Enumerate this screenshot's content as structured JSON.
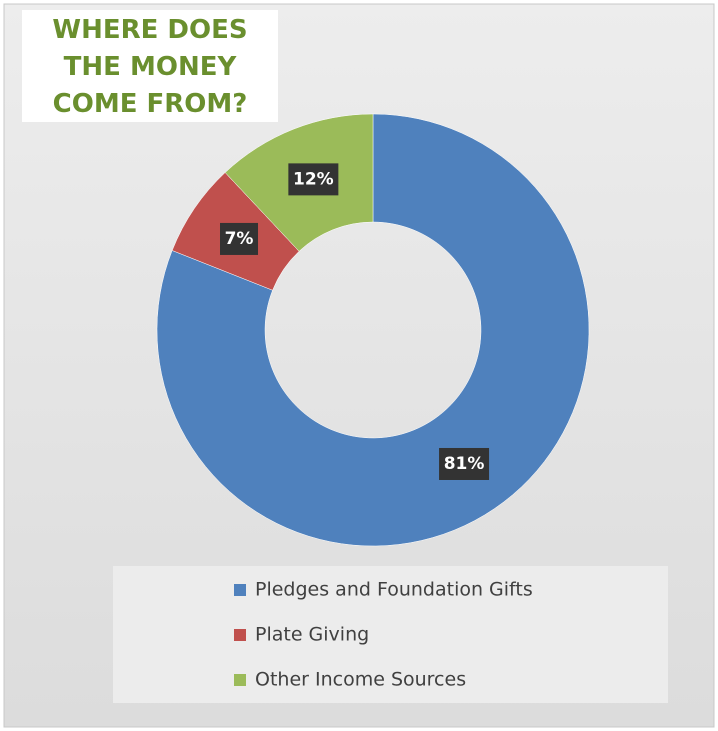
{
  "chart_data": {
    "type": "donut",
    "title": "WHERE DOES THE MONEY COME FROM?",
    "categories": [
      "Pledges and Foundation Gifts",
      "Plate Giving",
      "Other Income Sources"
    ],
    "values": [
      81,
      7,
      12
    ],
    "value_labels": [
      "81%",
      "7%",
      "12%"
    ],
    "colors": [
      "#4f81bd",
      "#c0504d",
      "#9bbb59"
    ],
    "legend": "bottom"
  }
}
